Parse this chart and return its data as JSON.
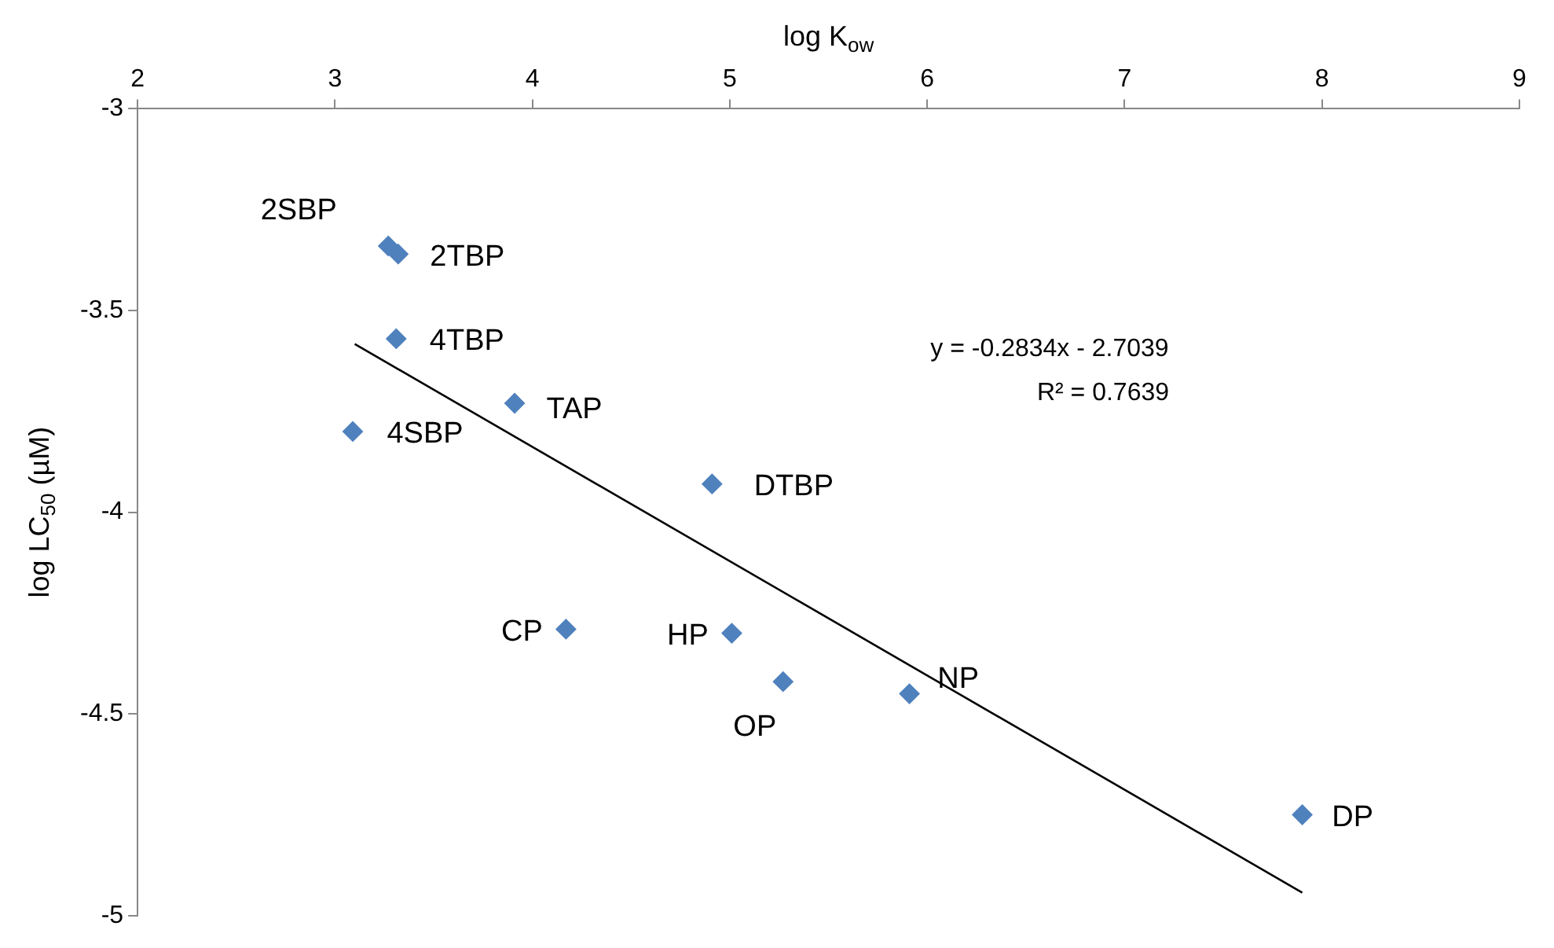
{
  "chart_data": {
    "type": "scatter",
    "xlabel": "log K$_{ow}$",
    "ylabel": "log LC$_{50}$ (µM)",
    "xlim": [
      2,
      9
    ],
    "xticks": [
      2,
      3,
      4,
      5,
      6,
      7,
      8,
      9
    ],
    "ylim": [
      -5,
      -3
    ],
    "yticks": [
      -5,
      -4.5,
      -4,
      -3.5,
      -3
    ],
    "grid": false,
    "legend": false,
    "marker": "diamond",
    "series": [
      {
        "type": "scatter",
        "color": "#4f81bd",
        "x": [
          3.27,
          3.32,
          3.31,
          3.09,
          3.91,
          4.91,
          4.17,
          5.01,
          5.27,
          5.91,
          7.9
        ],
        "values": [
          -3.34,
          -3.36,
          -3.57,
          -3.8,
          -3.73,
          -3.93,
          -4.29,
          -4.3,
          -4.42,
          -4.45,
          -4.75
        ]
      },
      {
        "type": "line",
        "color": "#000000",
        "marker": "none",
        "line_style": "solid",
        "x": [
          3.1,
          7.9
        ],
        "values": [
          -3.583,
          -4.943
        ]
      }
    ],
    "annotations": [
      {
        "text": "2SBP",
        "x": 3.27,
        "y": -3.34
      },
      {
        "text": "2TBP",
        "x": 3.32,
        "y": -3.36
      },
      {
        "text": "4TBP",
        "x": 3.31,
        "y": -3.57
      },
      {
        "text": "4SBP",
        "x": 3.09,
        "y": -3.8
      },
      {
        "text": "TAP",
        "x": 3.91,
        "y": -3.73
      },
      {
        "text": "DTBP",
        "x": 4.91,
        "y": -3.93
      },
      {
        "text": "CP",
        "x": 4.17,
        "y": -4.29
      },
      {
        "text": "HP",
        "x": 5.01,
        "y": -4.3
      },
      {
        "text": "OP",
        "x": 5.27,
        "y": -4.42
      },
      {
        "text": "NP",
        "x": 5.91,
        "y": -4.45
      },
      {
        "text": "DP",
        "x": 7.9,
        "y": -4.75
      },
      "y = -0.2834x - 2.7039",
      "R² = 0.7639"
    ]
  }
}
